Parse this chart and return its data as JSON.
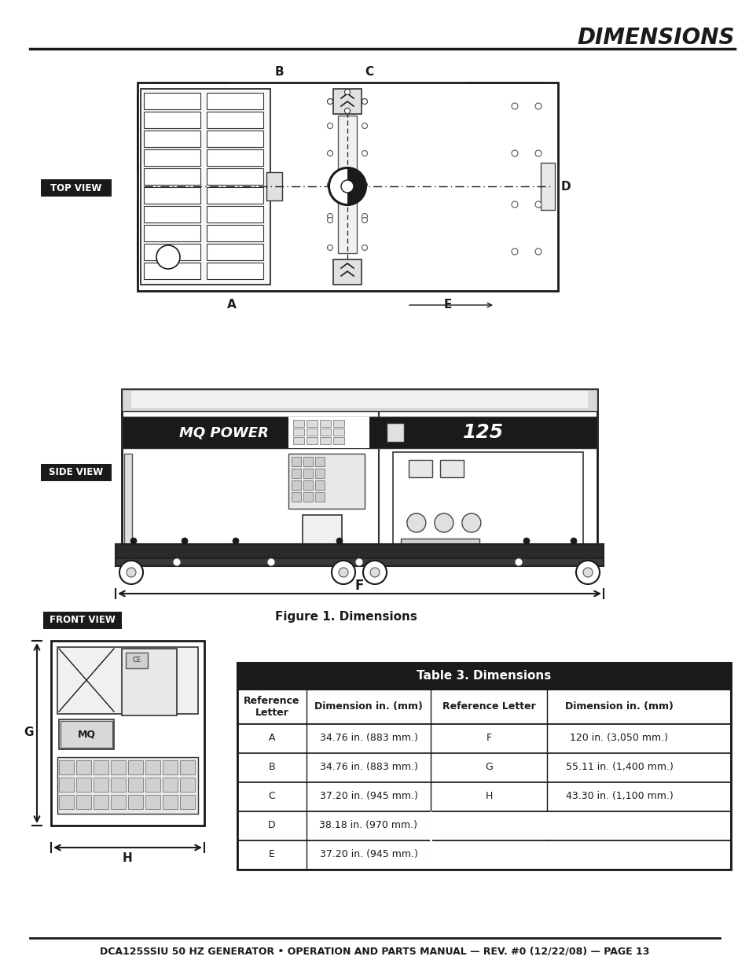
{
  "title": "DIMENSIONS",
  "title_color": "#1a1a1a",
  "bg_color": "#ffffff",
  "fig_caption": "Figure 1. Dimensions",
  "footer": "DCA125SSIU 50 HZ GENERATOR • OPERATION AND PARTS MANUAL — REV. #0 (12/22/08) — PAGE 13",
  "table_title": "Table 3. Dimensions",
  "table_header": [
    "Reference\nLetter",
    "Dimension in. (mm)",
    "Reference Letter",
    "Dimension in. (mm)"
  ],
  "table_rows": [
    [
      "A",
      "34.76 in. (883 mm.)",
      "F",
      "120 in. (3,050 mm.)"
    ],
    [
      "B",
      "34.76 in. (883 mm.)",
      "G",
      "55.11 in. (1,400 mm.)"
    ],
    [
      "C",
      "37.20 in. (945 mm.)",
      "H",
      "43.30 in. (1,100 mm.)"
    ],
    [
      "D",
      "38.18 in. (970 mm.)",
      "",
      ""
    ],
    [
      "E",
      "37.20 in. (945 mm.)",
      "",
      ""
    ]
  ],
  "label_bg": "#1a1a1a",
  "label_fg": "#ffffff"
}
